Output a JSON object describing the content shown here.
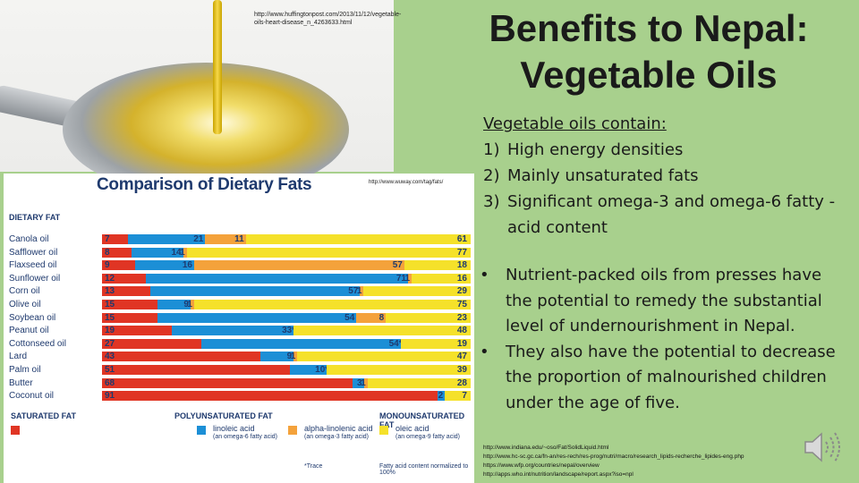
{
  "photo": {
    "url": "http://www.huffingtonpost.com/2013/11/12/vegetable-oils-heart-disease_n_4263633.html"
  },
  "slide": {
    "title_line1": "Benefits to Nepal:",
    "title_line2": "Vegetable Oils",
    "list_lead": "Vegetable oils contain:",
    "list": [
      {
        "n": "1)",
        "text": "High energy densities"
      },
      {
        "n": "2)",
        "text": "Mainly unsaturated fats"
      },
      {
        "n": "3)",
        "text": "Significant omega-3 and omega-6 fatty -acid content"
      }
    ],
    "bullets": [
      "Nutrient-packed oils from presses have the potential to remedy the substantial level of undernourishment in Nepal.",
      "They also have the potential to decrease the proportion of malnourished children under the age of five."
    ],
    "references": [
      "http://www.indiana.edu/~oso/Fat/SolidLiquid.html",
      "http://www.hc-sc.gc.ca/fn-an/res-rech/res-prog/nutri/macro/research_lipids-recherche_lipides-eng.php",
      "https://www.wfp.org/countries/nepal/overview",
      "http://apps.who.int/nutrition/landscape/report.aspx?iso=npl"
    ],
    "speaker_icon": "speaker-icon"
  },
  "chart_data": {
    "type": "bar",
    "stacked": true,
    "normalized_to": 100,
    "title": "Comparison of Dietary Fats",
    "source": "http://www.wuway.com/tag/fats/",
    "category_header": "DIETARY FAT",
    "categories": [
      "Canola oil",
      "Safflower oil",
      "Flaxseed oil",
      "Sunflower oil",
      "Corn oil",
      "Olive oil",
      "Soybean oil",
      "Peanut oil",
      "Cottonseed oil",
      "Lard",
      "Palm oil",
      "Butter",
      "Coconut oil"
    ],
    "series": [
      {
        "key": "sat",
        "name": "SATURATED FAT",
        "color": "#e03524",
        "values": [
          7,
          8,
          9,
          12,
          13,
          15,
          15,
          19,
          27,
          43,
          51,
          68,
          91
        ]
      },
      {
        "key": "lin",
        "name": "linoleic acid",
        "note": "(an omega-6 fatty acid)",
        "color": "#1c8fd6",
        "values": [
          21,
          14,
          16,
          71,
          57,
          9,
          54,
          33,
          54,
          9,
          10,
          3,
          2
        ]
      },
      {
        "key": "ala",
        "name": "alpha-linolenic acid",
        "note": "(an omega-3 fatty acid)",
        "color": "#f4a23b",
        "values": [
          11,
          1,
          57,
          1,
          1,
          1,
          8,
          0,
          0,
          1,
          0,
          1,
          0
        ]
      },
      {
        "key": "ole",
        "name": "oleic acid",
        "note": "(an omega-9 fatty acid)",
        "color": "#f5e12a",
        "values": [
          61,
          77,
          18,
          16,
          29,
          75,
          23,
          48,
          19,
          47,
          39,
          28,
          7
        ]
      }
    ],
    "trace_marks": [
      {
        "category": "Peanut oil",
        "series": "ala"
      },
      {
        "category": "Cottonseed oil",
        "series": "ala"
      },
      {
        "category": "Palm oil",
        "series": "ala"
      }
    ],
    "legend_groups": [
      "SATURATED FAT",
      "POLYUNSATURATED FAT",
      "MONOUNSATURATED FAT"
    ],
    "trace_label": "*Trace",
    "footnote": "Fatty acid content normalized to 100%"
  }
}
